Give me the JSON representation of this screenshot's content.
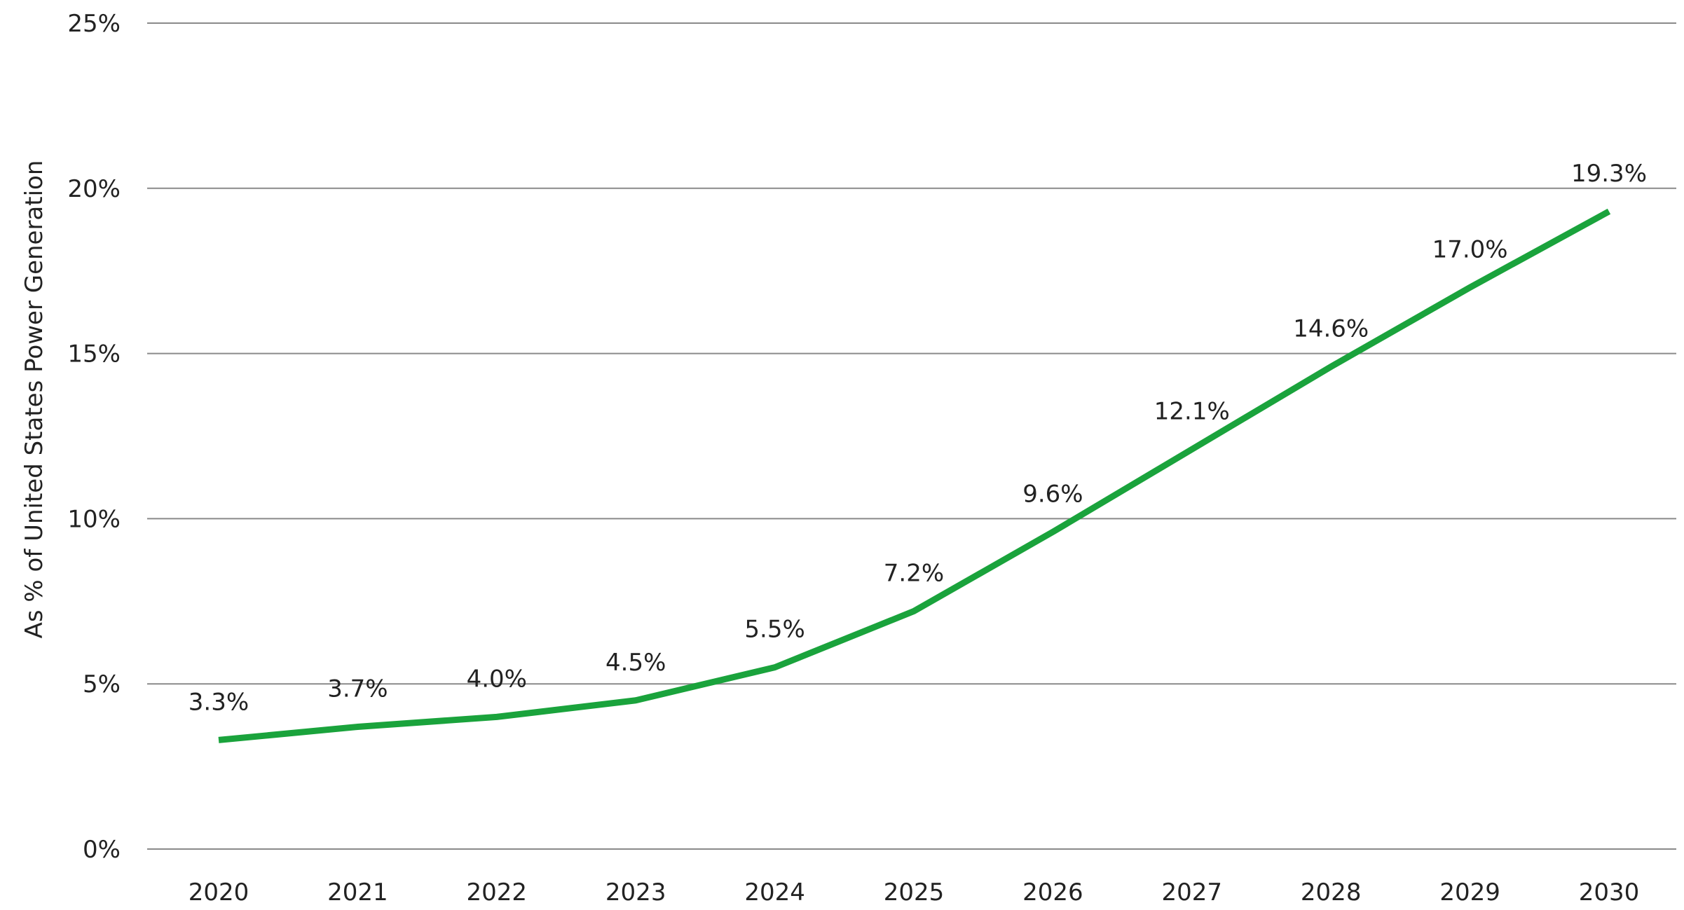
{
  "chart_data": {
    "type": "line",
    "title": "",
    "xlabel": "",
    "ylabel": "As % of United States Power Generation",
    "categories": [
      "2020",
      "2021",
      "2022",
      "2023",
      "2024",
      "2025",
      "2026",
      "2027",
      "2028",
      "2029",
      "2030"
    ],
    "series": [
      {
        "values": [
          3.3,
          3.7,
          4.0,
          4.5,
          5.5,
          7.2,
          9.6,
          12.1,
          14.6,
          17.0,
          19.3
        ],
        "labels": [
          "3.3%",
          "3.7%",
          "4.0%",
          "4.5%",
          "5.5%",
          "7.2%",
          "9.6%",
          "12.1%",
          "14.6%",
          "17.0%",
          "19.3%"
        ],
        "color": "#1aa33c"
      }
    ],
    "ylim": [
      0,
      25
    ],
    "yticks": [
      0,
      5,
      10,
      15,
      20,
      25
    ],
    "ytick_labels": [
      "0%",
      "5%",
      "10%",
      "15%",
      "20%",
      "25%"
    ],
    "grid": true,
    "legend": "none"
  }
}
